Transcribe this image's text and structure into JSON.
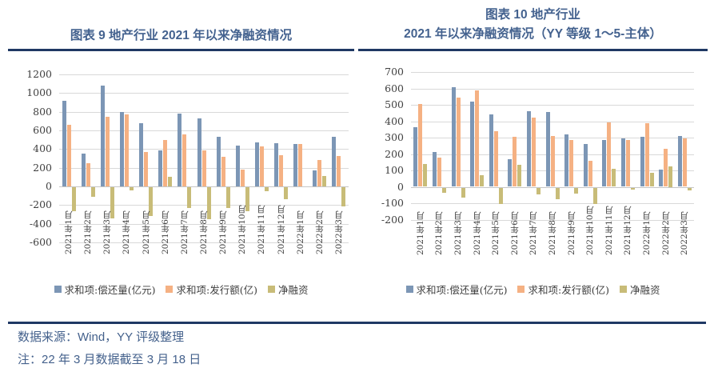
{
  "colors": {
    "series_repay": "#7C96B5",
    "series_issue": "#F5B183",
    "series_net": "#C8BC78",
    "gridline": "#D9D9D9",
    "axis_text": "#404040",
    "title_text": "#44628F",
    "rule_navy": "#1F3864",
    "footer_text": "#44618C"
  },
  "chart_data": [
    {
      "type": "bar",
      "title_lines": [
        "图表 9 地产行业 2021 年以来净融资情况"
      ],
      "ylim": [
        -600,
        1200
      ],
      "ytick_step": 200,
      "yticks": [
        1200,
        1000,
        800,
        600,
        400,
        200,
        0,
        -200,
        -400,
        -600
      ],
      "grid": true,
      "legend_position": "bottom",
      "categories": [
        "2021年1月",
        "2021年2月",
        "2021年3月",
        "2021年4月",
        "2021年5月",
        "2021年6月",
        "2021年7月",
        "2021年8月",
        "2021年9月",
        "2021年10月",
        "2021年11月",
        "2021年12月",
        "2022年1月",
        "2022年2月",
        "2022年3月"
      ],
      "series": [
        {
          "name": "求和项:偿还量(亿元)",
          "color_key": "series_repay",
          "values": [
            920,
            350,
            1080,
            800,
            680,
            390,
            780,
            730,
            535,
            435,
            475,
            465,
            455,
            170,
            535
          ]
        },
        {
          "name": "求和项:发行额(亿)",
          "color_key": "series_issue",
          "values": [
            660,
            250,
            750,
            770,
            370,
            495,
            555,
            385,
            315,
            180,
            430,
            335,
            455,
            280,
            330
          ]
        },
        {
          "name": "净融资",
          "color_key": "series_net",
          "values": [
            -260,
            -100,
            -330,
            -30,
            -310,
            105,
            -225,
            -345,
            -220,
            -255,
            -45,
            -130,
            0,
            110,
            -205
          ]
        }
      ]
    },
    {
      "type": "bar",
      "title_lines": [
        "图表 10 地产行业",
        "2021 年以来净融资情况（YY 等级 1～5-主体）"
      ],
      "ylim": [
        -200,
        700
      ],
      "ytick_step": 100,
      "yticks": [
        700,
        600,
        500,
        400,
        300,
        200,
        100,
        0,
        -100,
        -200
      ],
      "grid": true,
      "legend_position": "bottom",
      "categories": [
        "2021年1月",
        "2021年2月",
        "2021年3月",
        "2021年4月",
        "2021年5月",
        "2021年6月",
        "2021年7月",
        "2021年8月",
        "2021年9月",
        "2021年10月",
        "2021年11月",
        "2021年12月",
        "2022年1月",
        "2022年2月",
        "2022年3月"
      ],
      "series": [
        {
          "name": "求和项:偿还量(亿元)",
          "color_key": "series_repay",
          "values": [
            365,
            210,
            605,
            520,
            440,
            170,
            460,
            455,
            320,
            260,
            285,
            295,
            305,
            105,
            310
          ]
        },
        {
          "name": "求和项:发行额(亿)",
          "color_key": "series_issue",
          "values": [
            505,
            180,
            545,
            590,
            340,
            305,
            420,
            310,
            285,
            160,
            395,
            285,
            390,
            230,
            295
          ]
        },
        {
          "name": "净融资",
          "color_key": "series_net",
          "values": [
            140,
            -30,
            -60,
            70,
            -100,
            135,
            -40,
            -70,
            -35,
            -100,
            110,
            -10,
            85,
            125,
            -15
          ]
        }
      ]
    }
  ],
  "footer": {
    "source": "数据来源：Wind，YY 评级整理",
    "note": "注：22 年 3 月数据截至 3 月 18 日"
  }
}
